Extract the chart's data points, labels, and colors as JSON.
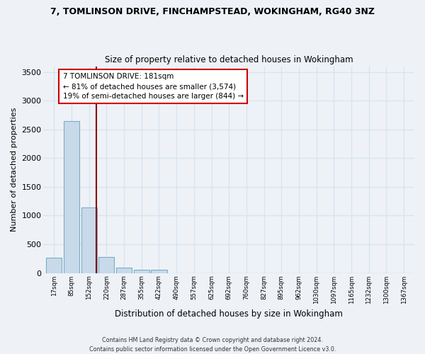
{
  "title": "7, TOMLINSON DRIVE, FINCHAMPSTEAD, WOKINGHAM, RG40 3NZ",
  "subtitle": "Size of property relative to detached houses in Wokingham",
  "xlabel": "Distribution of detached houses by size in Wokingham",
  "ylabel": "Number of detached properties",
  "bar_color": "#c8daea",
  "bar_edge_color": "#7aaec8",
  "categories": [
    "17sqm",
    "85sqm",
    "152sqm",
    "220sqm",
    "287sqm",
    "355sqm",
    "422sqm",
    "490sqm",
    "557sqm",
    "625sqm",
    "692sqm",
    "760sqm",
    "827sqm",
    "895sqm",
    "962sqm",
    "1030sqm",
    "1097sqm",
    "1165sqm",
    "1232sqm",
    "1300sqm",
    "1367sqm"
  ],
  "values": [
    270,
    2640,
    1140,
    275,
    90,
    55,
    50,
    0,
    0,
    0,
    0,
    0,
    0,
    0,
    0,
    0,
    0,
    0,
    0,
    0,
    0
  ],
  "ylim": [
    0,
    3600
  ],
  "yticks": [
    0,
    500,
    1000,
    1500,
    2000,
    2500,
    3000,
    3500
  ],
  "property_line_x": 2.42,
  "annotation_text": "7 TOMLINSON DRIVE: 181sqm\n← 81% of detached houses are smaller (3,574)\n19% of semi-detached houses are larger (844) →",
  "annotation_box_color": "#ffffff",
  "annotation_border_color": "#cc0000",
  "line_color": "#8b0000",
  "footer": "Contains HM Land Registry data © Crown copyright and database right 2024.\nContains public sector information licensed under the Open Government Licence v3.0.",
  "bg_color": "#eef2f7",
  "grid_color": "#d8e4f0",
  "ax_bg_color": "#eef2f7"
}
